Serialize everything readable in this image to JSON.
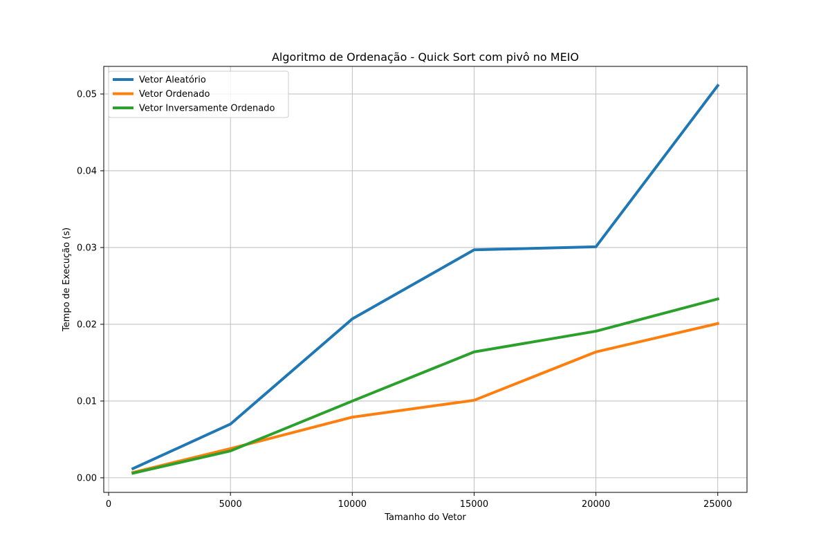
{
  "chart_data": {
    "type": "line",
    "title": "Algoritmo de Ordenação - Quick Sort com pivô no MEIO",
    "xlabel": "Tamanho do Vetor",
    "ylabel": "Tempo de Execução (s)",
    "x": [
      1000,
      5000,
      10000,
      15000,
      20000,
      25000
    ],
    "xlim": [
      -200,
      26200
    ],
    "ylim": [
      -0.0019,
      0.0536
    ],
    "x_ticks": [
      0,
      5000,
      10000,
      15000,
      20000,
      25000
    ],
    "x_tick_labels": [
      "0",
      "5000",
      "10000",
      "15000",
      "20000",
      "25000"
    ],
    "y_ticks": [
      0.0,
      0.01,
      0.02,
      0.03,
      0.04,
      0.05
    ],
    "y_tick_labels": [
      "0.00",
      "0.01",
      "0.02",
      "0.03",
      "0.04",
      "0.05"
    ],
    "grid": true,
    "legend_position": "top-left",
    "series": [
      {
        "name": "Vetor Aleatório",
        "color": "#1f77b4",
        "values": [
          0.0012,
          0.007,
          0.0207,
          0.0297,
          0.0301,
          0.0511
        ]
      },
      {
        "name": "Vetor Ordenado",
        "color": "#ff7f0e",
        "values": [
          0.0007,
          0.0038,
          0.0079,
          0.0101,
          0.0164,
          0.0201
        ]
      },
      {
        "name": "Vetor Inversamente Ordenado",
        "color": "#2ca02c",
        "values": [
          0.0006,
          0.0035,
          0.01,
          0.0164,
          0.0191,
          0.0233
        ]
      }
    ]
  }
}
